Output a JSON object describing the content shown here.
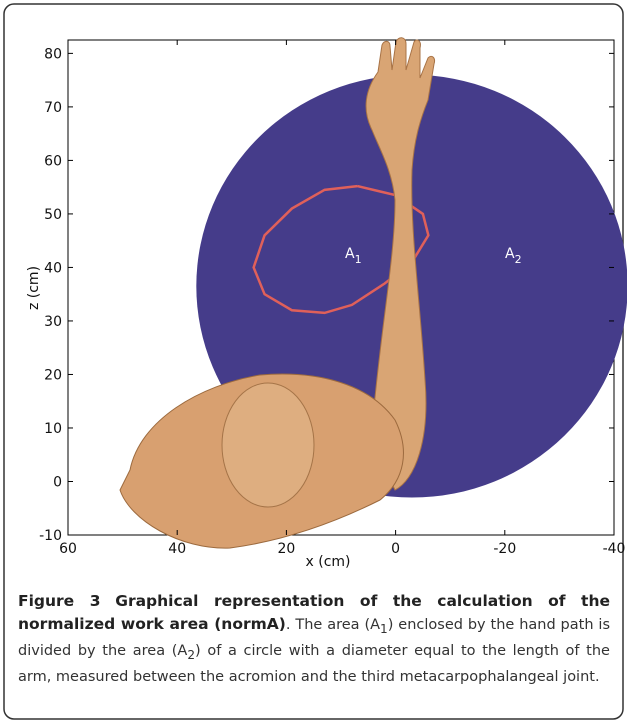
{
  "chart_data": {
    "type": "line",
    "xlabel": "x (cm)",
    "ylabel": "z (cm)",
    "xlim": [
      60,
      -40
    ],
    "xticks": [
      60,
      40,
      20,
      0,
      -20,
      -40
    ],
    "ylim": [
      -10,
      82.5
    ],
    "yticks": [
      -10,
      0,
      10,
      20,
      30,
      40,
      50,
      60,
      70,
      80
    ],
    "circle": {
      "x": -3,
      "z": 36.5,
      "r": 39.5,
      "color": "#453c8a"
    },
    "x": [
      7,
      0,
      -5,
      -6,
      -3,
      2,
      8,
      13,
      19,
      24,
      26,
      24,
      19,
      13,
      7
    ],
    "series": [
      {
        "color": "#e0605a",
        "values": [
          55.2,
          53.5,
          50,
          46,
          41,
          37,
          33,
          31.5,
          32,
          35,
          40,
          46,
          51,
          54.5,
          55.2
        ]
      }
    ],
    "annotations": [
      {
        "text": "A",
        "sub": "1"
      },
      {
        "text": "A",
        "sub": "2"
      }
    ]
  },
  "caption": {
    "label": "Figure 3",
    "title": "Graphical representation of the calculation of the normalized work area (normA)",
    "body": [
      ". The area (A",
      "1",
      ") enclosed by the hand path is divided by the area (A",
      "2",
      ") of a circle with a diameter equal to the length of the arm, measured between the acromion and the third metacarpophalangeal joint."
    ]
  }
}
